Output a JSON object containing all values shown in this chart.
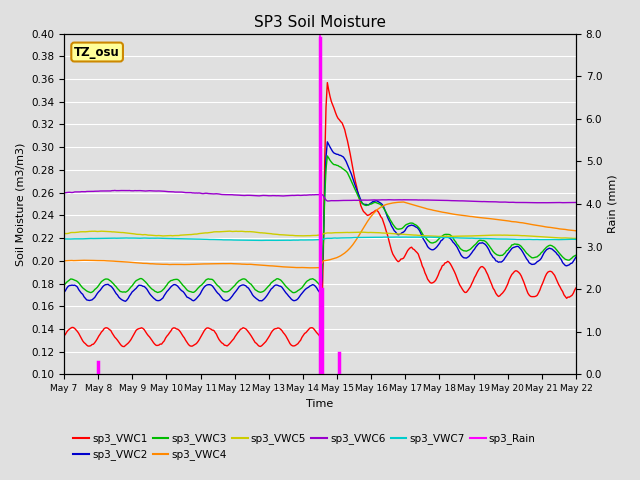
{
  "title": "SP3 Soil Moisture",
  "ylabel_left": "Soil Moisture (m3/m3)",
  "ylabel_right": "Rain (mm)",
  "xlabel": "Time",
  "ylim_left": [
    0.1,
    0.4
  ],
  "ylim_right": [
    0.0,
    8.0
  ],
  "background_color": "#e0e0e0",
  "grid_color": "white",
  "label_box": "TZ_osu",
  "label_box_color": "#ffff99",
  "label_box_edgecolor": "#cc8800",
  "series": [
    {
      "label": "sp3_VWC1",
      "color": "#ff0000",
      "pre_mean": 0.133,
      "pre_wave_amp": 0.008,
      "pre_wave_period_hrs": 24,
      "post_peak": 0.375,
      "post_end": 0.178,
      "post_wave_amp": 0.012,
      "post_wave_period_hrs": 24,
      "post_decay_tau": 30,
      "post_decay_slow": false
    },
    {
      "label": "sp3_VWC2",
      "color": "#0000cc",
      "pre_mean": 0.172,
      "pre_wave_amp": 0.007,
      "pre_wave_period_hrs": 24,
      "post_peak": 0.315,
      "post_end": 0.202,
      "post_wave_amp": 0.008,
      "post_wave_period_hrs": 24,
      "post_decay_tau": 40,
      "post_decay_slow": false
    },
    {
      "label": "sp3_VWC3",
      "color": "#00bb00",
      "pre_mean": 0.178,
      "pre_wave_amp": 0.006,
      "pre_wave_period_hrs": 24,
      "post_peak": 0.3,
      "post_end": 0.205,
      "post_wave_amp": 0.006,
      "post_wave_period_hrs": 24,
      "post_decay_tau": 45,
      "post_decay_slow": false
    },
    {
      "label": "sp3_VWC4",
      "color": "#ff8800",
      "pre_mean": 0.2,
      "pre_wave_amp": 0.001,
      "pre_wave_period_hrs": 96,
      "pre_trend": -3e-05,
      "post_peak": 0.252,
      "post_end": 0.215,
      "post_wave_amp": 0.001,
      "post_wave_period_hrs": 96,
      "post_decay_tau": 120,
      "post_decay_slow": true
    },
    {
      "label": "sp3_VWC5",
      "color": "#cccc00",
      "pre_mean": 0.224,
      "pre_wave_amp": 0.002,
      "pre_wave_period_hrs": 96,
      "post_peak": 0.225,
      "post_end": 0.218,
      "post_wave_amp": 0.001,
      "post_wave_period_hrs": 96,
      "post_decay_tau": 200,
      "post_decay_slow": false
    },
    {
      "label": "sp3_VWC6",
      "color": "#9900cc",
      "pre_mean": 0.26,
      "pre_wave_amp": 0.002,
      "pre_wave_period_hrs": 192,
      "pre_trend": -5e-06,
      "post_peak": 0.253,
      "post_end": 0.25,
      "post_wave_amp": 0.001,
      "post_wave_period_hrs": 192,
      "post_decay_tau": 500,
      "post_decay_slow": false
    },
    {
      "label": "sp3_VWC7",
      "color": "#00cccc",
      "pre_mean": 0.219,
      "pre_wave_amp": 0.001,
      "pre_wave_period_hrs": 192,
      "post_peak": 0.22,
      "post_end": 0.218,
      "post_wave_amp": 0.001,
      "post_wave_period_hrs": 192,
      "post_decay_tau": 1000,
      "post_decay_slow": false
    }
  ],
  "rain_label": "sp3_Rain",
  "rain_color": "#ff00ff",
  "xtick_labels": [
    "May 7",
    "May 8",
    "May 9",
    "May 10",
    "May 11",
    "May 12",
    "May 13",
    "May 14",
    "May 15",
    "May 16",
    "May 17",
    "May 18",
    "May 19",
    "May 20",
    "May 21",
    "May 22"
  ],
  "xtick_positions": [
    0,
    1,
    2,
    3,
    4,
    5,
    6,
    7,
    8,
    9,
    10,
    11,
    12,
    13,
    14,
    15
  ],
  "yticks_left": [
    0.1,
    0.12,
    0.14,
    0.16,
    0.18,
    0.2,
    0.22,
    0.24,
    0.26,
    0.28,
    0.3,
    0.32,
    0.34,
    0.36,
    0.38,
    0.4
  ],
  "yticks_right": [
    0.0,
    1.0,
    2.0,
    3.0,
    4.0,
    5.0,
    6.0,
    7.0,
    8.0
  ]
}
